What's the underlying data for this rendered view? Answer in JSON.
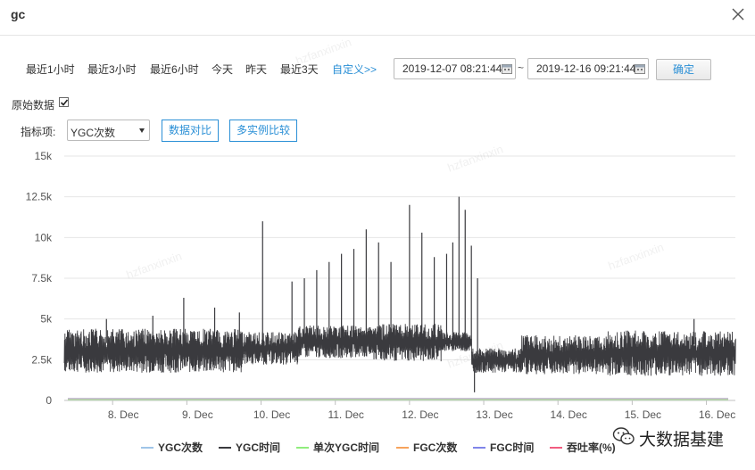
{
  "dialog": {
    "title": "gc"
  },
  "quick_ranges": [
    {
      "label": "最近1小时"
    },
    {
      "label": "最近3小时"
    },
    {
      "label": "最近6小时"
    },
    {
      "label": "今天"
    },
    {
      "label": "昨天"
    },
    {
      "label": "最近3天"
    }
  ],
  "custom_range_label": "自定义>>",
  "date_range": {
    "start": "2019-12-07 08:21:44",
    "end": "2019-12-16 09:21:44",
    "separator": "~",
    "confirm_label": "确定"
  },
  "raw_data": {
    "label": "原始数据",
    "checked": true
  },
  "metric": {
    "label": "指标项:",
    "selected": "YGC次数",
    "compare_label": "数据对比",
    "multi_instance_label": "多实例比较"
  },
  "chart_data": {
    "type": "line",
    "title": "",
    "xlabel": "",
    "ylabel": "",
    "ylim": [
      0,
      15000
    ],
    "y_ticks": [
      "15k",
      "12.5k",
      "10k",
      "7.5k",
      "5k",
      "2.5k",
      "0"
    ],
    "x_ticks": [
      "8. Dec",
      "9. Dec",
      "10. Dec",
      "11. Dec",
      "12. Dec",
      "13. Dec",
      "14. Dec",
      "15. Dec",
      "16. Dec"
    ],
    "x_range": [
      "2019-12-07 08:21:44",
      "2019-12-16 09:21:44"
    ],
    "grid": true,
    "legend_position": "bottom",
    "series": [
      {
        "name": "YGC次数",
        "color": "#9fc5e8"
      },
      {
        "name": "YGC时间",
        "color": "#3a3a3e",
        "segments": [
          {
            "from": "2019-12-07 08:21:44",
            "to": "2019-12-09 18:00:00",
            "low": 1700,
            "high": 4400
          },
          {
            "from": "2019-12-09 18:00:00",
            "to": "2019-12-10 12:00:00",
            "low": 2200,
            "high": 4200
          },
          {
            "from": "2019-12-10 12:00:00",
            "to": "2019-12-11 12:00:00",
            "low": 2600,
            "high": 4600
          },
          {
            "from": "2019-12-11 12:00:00",
            "to": "2019-12-12 10:30:00",
            "low": 2400,
            "high": 4700
          },
          {
            "from": "2019-12-12 10:30:00",
            "to": "2019-12-12 20:00:00",
            "low": 3000,
            "high": 4200
          },
          {
            "from": "2019-12-12 20:00:00",
            "to": "2019-12-13 12:00:00",
            "low": 1700,
            "high": 3200
          },
          {
            "from": "2019-12-13 12:00:00",
            "to": "2019-12-14 16:00:00",
            "low": 1600,
            "high": 4000
          },
          {
            "from": "2019-12-14 16:00:00",
            "to": "2019-12-16 09:21:44",
            "low": 1500,
            "high": 4300
          }
        ],
        "peaks": [
          {
            "t": "2019-12-07 22:00:00",
            "v": 5000
          },
          {
            "t": "2019-12-08 13:00:00",
            "v": 5200
          },
          {
            "t": "2019-12-08 23:00:00",
            "v": 6300
          },
          {
            "t": "2019-12-09 09:00:00",
            "v": 5700
          },
          {
            "t": "2019-12-09 17:00:00",
            "v": 5400
          },
          {
            "t": "2019-12-10 00:30:00",
            "v": 11000
          },
          {
            "t": "2019-12-10 10:00:00",
            "v": 7300
          },
          {
            "t": "2019-12-10 14:00:00",
            "v": 7500
          },
          {
            "t": "2019-12-10 18:00:00",
            "v": 8000
          },
          {
            "t": "2019-12-10 22:00:00",
            "v": 8500
          },
          {
            "t": "2019-12-11 02:00:00",
            "v": 9000
          },
          {
            "t": "2019-12-11 06:00:00",
            "v": 9300
          },
          {
            "t": "2019-12-11 10:00:00",
            "v": 10500
          },
          {
            "t": "2019-12-11 14:00:00",
            "v": 9700
          },
          {
            "t": "2019-12-11 18:00:00",
            "v": 8500
          },
          {
            "t": "2019-12-12 00:00:00",
            "v": 12000
          },
          {
            "t": "2019-12-12 04:00:00",
            "v": 10300
          },
          {
            "t": "2019-12-12 08:00:00",
            "v": 8800
          },
          {
            "t": "2019-12-12 12:00:00",
            "v": 9000
          },
          {
            "t": "2019-12-12 14:00:00",
            "v": 9700
          },
          {
            "t": "2019-12-12 16:00:00",
            "v": 12500
          },
          {
            "t": "2019-12-12 18:00:00",
            "v": 11700
          },
          {
            "t": "2019-12-12 20:00:00",
            "v": 9500
          },
          {
            "t": "2019-12-12 22:00:00",
            "v": 7500
          },
          {
            "t": "2019-12-13 14:00:00",
            "v": 4000
          },
          {
            "t": "2019-12-15 20:00:00",
            "v": 5000
          }
        ],
        "dips": [
          {
            "t": "2019-12-12 21:00:00",
            "v": 500
          }
        ]
      },
      {
        "name": "单次YGC时间",
        "color": "#90ed7d"
      },
      {
        "name": "FGC次数",
        "color": "#f7a35c"
      },
      {
        "name": "FGC时间",
        "color": "#8085e9"
      },
      {
        "name": "吞吐率(%)",
        "color": "#f15c80"
      }
    ]
  },
  "branding": {
    "label": "大数据基建"
  }
}
